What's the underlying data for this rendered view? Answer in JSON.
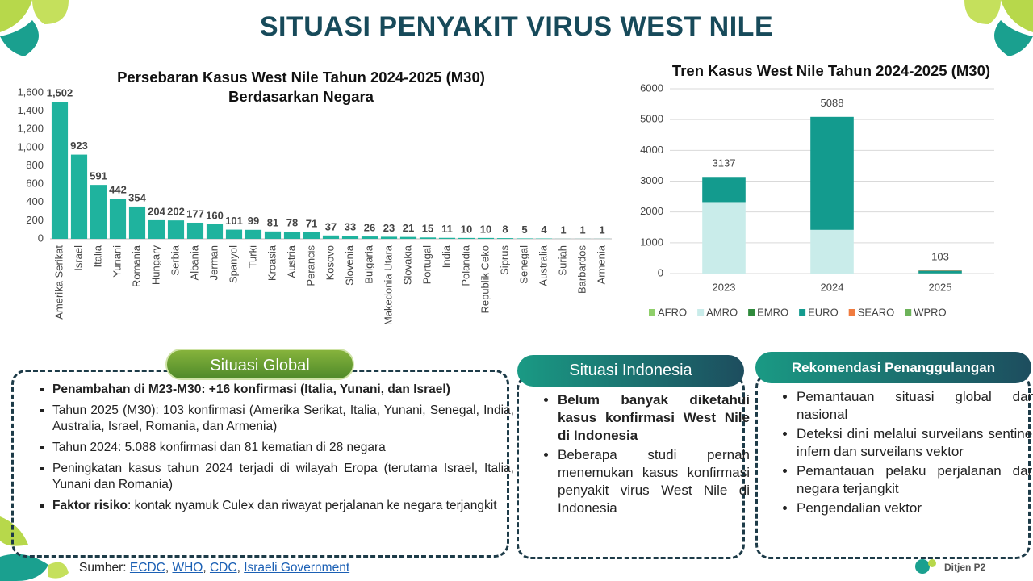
{
  "title": "SITUASI PENYAKIT VIRUS WEST NILE",
  "chart_data": [
    {
      "type": "bar",
      "title": "Persebaran Kasus West Nile Tahun 2024-2025 (M30) Berdasarkan Negara",
      "categories": [
        "Amerika Serikat",
        "Israel",
        "Italia",
        "Yunani",
        "Romania",
        "Hungary",
        "Serbia",
        "Albania",
        "Jerman",
        "Spanyol",
        "Turki",
        "Kroasia",
        "Austria",
        "Perancis",
        "Kosovo",
        "Slovenia",
        "Bulgaria",
        "Makedonia Utara",
        "Slovakia",
        "Portugal",
        "India",
        "Polandia",
        "Republik Ceko",
        "Siprus",
        "Senegal",
        "Australia",
        "Suriah",
        "Barbardos",
        "Armenia"
      ],
      "values": [
        1502,
        923,
        591,
        442,
        354,
        204,
        202,
        177,
        160,
        101,
        99,
        81,
        78,
        71,
        37,
        33,
        26,
        23,
        21,
        15,
        11,
        10,
        10,
        8,
        5,
        4,
        1,
        1,
        1
      ],
      "value_labels": [
        "1,502",
        "923",
        "591",
        "442",
        "354",
        "204",
        "202",
        "177",
        "160",
        "101",
        "99",
        "81",
        "78",
        "71",
        "37",
        "33",
        "26",
        "23",
        "21",
        "15",
        "11",
        "10",
        "10",
        "8",
        "5",
        "4",
        "1",
        "1",
        "1"
      ],
      "color": "#1fb39e",
      "ylim": [
        0,
        1600
      ],
      "yticks": [
        0,
        200,
        400,
        600,
        800,
        {
          "value": 1000,
          "label": "1,000"
        },
        {
          "value": 1200,
          "label": "1,200"
        },
        {
          "value": 1400,
          "label": "1,400"
        },
        {
          "value": 1600,
          "label": "1,600"
        }
      ],
      "grid": false
    },
    {
      "type": "stacked_bar",
      "title": "Tren Kasus West Nile Tahun 2024-2025 (M30)",
      "categories": [
        "2023",
        "2024",
        "2025"
      ],
      "series": [
        {
          "name": "AFRO",
          "color": "#8fcf6a",
          "values": [
            0,
            0,
            5
          ]
        },
        {
          "name": "AMRO",
          "color": "#c9ecea",
          "values": [
            2320,
            1420,
            2
          ]
        },
        {
          "name": "EMRO",
          "color": "#2f8a3c",
          "values": [
            0,
            0,
            0
          ]
        },
        {
          "name": "EURO",
          "color": "#139b8e",
          "values": [
            817,
            3668,
            84
          ]
        },
        {
          "name": "SEARO",
          "color": "#f07b3f",
          "values": [
            0,
            0,
            11
          ]
        },
        {
          "name": "WPRO",
          "color": "#6db35a",
          "values": [
            0,
            0,
            1
          ]
        }
      ],
      "totals": [
        3137,
        5088,
        103
      ],
      "ylim": [
        0,
        6000
      ],
      "yticks": [
        0,
        1000,
        2000,
        3000,
        4000,
        5000,
        6000
      ],
      "grid": true,
      "legend": "bottom"
    }
  ],
  "sections": {
    "global": {
      "header": "Situasi Global",
      "items": [
        {
          "bold": "Penambahan di M23-M30: +16 konfirmasi (Italia, Yunani, dan Israel)"
        },
        {
          "text": "Tahun 2025 (M30): 103 konfirmasi (Amerika Serikat, Italia, Yunani, Senegal, India, Australia, Israel, Romania, dan Armenia)"
        },
        {
          "text": "Tahun 2024: 5.088 konfirmasi dan 81 kematian di 28 negara"
        },
        {
          "text": "Peningkatan kasus tahun 2024 terjadi di wilayah Eropa (terutama Israel, Italia, Yunani dan Romania)"
        },
        {
          "bold": "Faktor risiko",
          "text": ": kontak nyamuk Culex dan riwayat perjalanan ke negara terjangkit"
        }
      ]
    },
    "indonesia": {
      "header": "Situasi Indonesia",
      "items": [
        {
          "bold": "Belum banyak diketahui kasus konfirmasi West Nile di Indonesia"
        },
        {
          "text": "Beberapa studi pernah menemukan kasus konfirmasi penyakit virus West Nile di Indonesia"
        }
      ]
    },
    "rekomendasi": {
      "header": "Rekomendasi Penanggulangan",
      "items": [
        {
          "text": "Pemantauan situasi global dan nasional"
        },
        {
          "text": "Deteksi dini melalui surveilans sentinel infem dan surveilans vektor"
        },
        {
          "text": "Pemantauan pelaku perjalanan dari negara terjangkit"
        },
        {
          "text": "Pengendalian vektor"
        }
      ]
    }
  },
  "source": {
    "label": "Sumber:",
    "separator": ", ",
    "links": [
      "ECDC",
      "WHO",
      "CDC",
      "Israeli Government"
    ]
  },
  "logo": "Ditjen P2"
}
